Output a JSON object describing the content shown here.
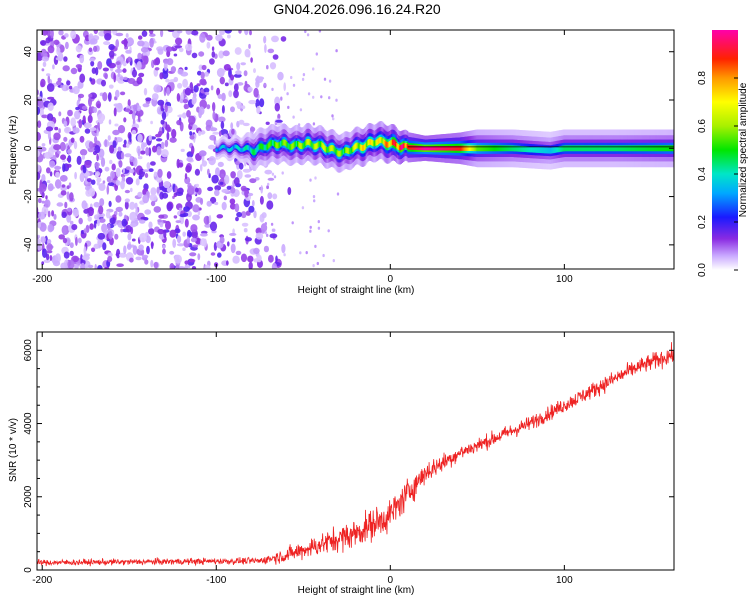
{
  "figure": {
    "title": "GN04.2026.096.16.24.R20"
  },
  "chart_data": [
    {
      "type": "heatmap",
      "title": "GN04.2026.096.16.24.R20",
      "xlabel": "Height of straight line (km)",
      "ylabel": "Frequency (Hz)",
      "xlim": [
        -203,
        163
      ],
      "ylim": [
        -50,
        49
      ],
      "x_ticks": [
        -200,
        -100,
        0,
        100
      ],
      "x_tick_labels": [
        "-200",
        "-100",
        "0",
        "100"
      ],
      "y_ticks": [
        -40,
        -20,
        0,
        20,
        40
      ],
      "y_tick_labels": [
        "-40",
        "-20",
        "0",
        "20",
        "40"
      ],
      "noise_region": {
        "x_start": -203,
        "x_end": -73,
        "density": 0.55
      },
      "signal_path": [
        {
          "x": -100,
          "f": 0,
          "w": 1.5,
          "a": 0.3
        },
        {
          "x": -85,
          "f": 0,
          "w": 2,
          "a": 0.35
        },
        {
          "x": -78,
          "f": -1,
          "w": 3,
          "a": 0.4
        },
        {
          "x": -72,
          "f": 1,
          "w": 3,
          "a": 0.45
        },
        {
          "x": -64,
          "f": 2,
          "w": 3,
          "a": 0.5
        },
        {
          "x": -55,
          "f": 1,
          "w": 3,
          "a": 0.5
        },
        {
          "x": -48,
          "f": 2,
          "w": 3,
          "a": 0.55
        },
        {
          "x": -40,
          "f": 1,
          "w": 3,
          "a": 0.55
        },
        {
          "x": -32,
          "f": -1,
          "w": 3,
          "a": 0.55
        },
        {
          "x": -27,
          "f": -2,
          "w": 3,
          "a": 0.5
        },
        {
          "x": -22,
          "f": 0,
          "w": 3,
          "a": 0.55
        },
        {
          "x": -15,
          "f": 1,
          "w": 3,
          "a": 0.65
        },
        {
          "x": -8,
          "f": 3,
          "w": 3,
          "a": 0.6
        },
        {
          "x": 0,
          "f": 2,
          "w": 3,
          "a": 0.75
        },
        {
          "x": 8,
          "f": 0.5,
          "w": 2.5,
          "a": 0.85
        },
        {
          "x": 20,
          "f": 0,
          "w": 2,
          "a": 1.0
        },
        {
          "x": 40,
          "f": 0,
          "w": 2.5,
          "a": 0.9
        },
        {
          "x": 50,
          "f": 0,
          "w": 3,
          "a": 0.55
        },
        {
          "x": 70,
          "f": 0,
          "w": 3,
          "a": 0.45
        },
        {
          "x": 92,
          "f": -1,
          "w": 3,
          "a": 0.35
        },
        {
          "x": 100,
          "f": 0,
          "w": 3,
          "a": 0.45
        },
        {
          "x": 130,
          "f": 0,
          "w": 3,
          "a": 0.45
        },
        {
          "x": 163,
          "f": 0,
          "w": 3,
          "a": 0.5
        }
      ]
    },
    {
      "type": "line",
      "xlabel": "Height of straight line (km)",
      "ylabel": "SNR (10 * v/v)",
      "xlim": [
        -203,
        163
      ],
      "ylim": [
        0,
        6500
      ],
      "x_ticks": [
        -200,
        -100,
        0,
        100
      ],
      "x_tick_labels": [
        "-200",
        "-100",
        "0",
        "100"
      ],
      "y_ticks": [
        0,
        2000,
        4000,
        6000
      ],
      "y_tick_labels": [
        "0",
        "2000",
        "4000",
        "6000"
      ],
      "series": [
        {
          "name": "SNR",
          "color": "#ee2222",
          "trend": [
            {
              "x": -203,
              "y": 200,
              "noise": 80
            },
            {
              "x": -75,
              "y": 250,
              "noise": 90
            },
            {
              "x": -60,
              "y": 400,
              "noise": 200
            },
            {
              "x": -40,
              "y": 700,
              "noise": 300
            },
            {
              "x": -20,
              "y": 1000,
              "noise": 400
            },
            {
              "x": 0,
              "y": 1500,
              "noise": 450
            },
            {
              "x": 10,
              "y": 2100,
              "noise": 400
            },
            {
              "x": 20,
              "y": 2650,
              "noise": 300
            },
            {
              "x": 40,
              "y": 3200,
              "noise": 200
            },
            {
              "x": 60,
              "y": 3600,
              "noise": 200
            },
            {
              "x": 80,
              "y": 4000,
              "noise": 200
            },
            {
              "x": 100,
              "y": 4500,
              "noise": 200
            },
            {
              "x": 120,
              "y": 5000,
              "noise": 220
            },
            {
              "x": 140,
              "y": 5500,
              "noise": 220
            },
            {
              "x": 163,
              "y": 5900,
              "noise": 250
            }
          ]
        }
      ]
    }
  ],
  "colorbar": {
    "label": "Normalized spectral amplitude",
    "range": [
      0,
      1
    ],
    "ticks": [
      0,
      0.2,
      0.4,
      0.6,
      0.8
    ],
    "tick_labels": [
      "0.0",
      "0.2",
      "0.4",
      "0.6",
      "0.8"
    ]
  }
}
